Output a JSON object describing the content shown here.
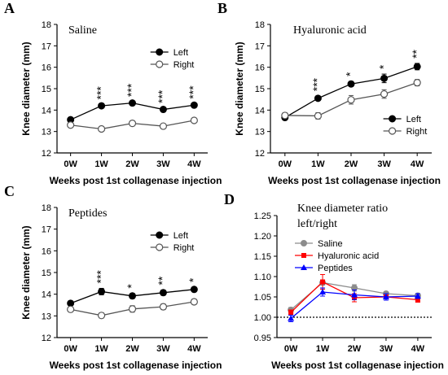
{
  "chart_data": [
    {
      "type": "line",
      "panel_label": "A",
      "title": "Saline",
      "xlabel": "Weeks post 1st collagenase injection",
      "ylabel": "Knee diameter (mm)",
      "categories": [
        "0W",
        "1W",
        "2W",
        "3W",
        "4W"
      ],
      "ylim": [
        12,
        18
      ],
      "yticks": [
        "12",
        "13",
        "14",
        "15",
        "16",
        "17",
        "18"
      ],
      "legend_position": "top-right",
      "series": [
        {
          "name": "Left",
          "marker": "filled-circle",
          "color": "#000000",
          "values": [
            13.55,
            14.2,
            14.33,
            14.03,
            14.23
          ],
          "errors": [
            0.06,
            0.06,
            0.06,
            0.06,
            0.06
          ]
        },
        {
          "name": "Right",
          "marker": "open-circle",
          "color": "#555555",
          "values": [
            13.3,
            13.12,
            13.38,
            13.25,
            13.52
          ],
          "errors": [
            0.06,
            0.06,
            0.12,
            0.1,
            0.06
          ]
        }
      ],
      "annotations": [
        "",
        "***",
        "***",
        "***",
        "***"
      ]
    },
    {
      "type": "line",
      "panel_label": "B",
      "title": "Hyaluronic acid",
      "xlabel": "Weeks post 1st collagenase injection",
      "ylabel": "Knee diameter (mm)",
      "categories": [
        "0W",
        "1W",
        "2W",
        "3W",
        "4W"
      ],
      "ylim": [
        12,
        18
      ],
      "yticks": [
        "12",
        "13",
        "14",
        "15",
        "16",
        "17",
        "18"
      ],
      "legend_position": "bottom-right",
      "series": [
        {
          "name": "Left",
          "marker": "filled-circle",
          "color": "#000000",
          "values": [
            13.65,
            14.55,
            15.22,
            15.48,
            16.03
          ],
          "errors": [
            0.07,
            0.1,
            0.12,
            0.2,
            0.15
          ]
        },
        {
          "name": "Right",
          "marker": "open-circle",
          "color": "#555555",
          "values": [
            13.75,
            13.73,
            14.48,
            14.75,
            15.28
          ],
          "errors": [
            0.12,
            0.15,
            0.2,
            0.2,
            0.15
          ]
        }
      ],
      "annotations": [
        "",
        "***",
        "*",
        "*",
        "**"
      ]
    },
    {
      "type": "line",
      "panel_label": "C",
      "title": "Peptides",
      "xlabel": "Weeks post 1st collagenase injection",
      "ylabel": "Knee diameter (mm)",
      "categories": [
        "0W",
        "1W",
        "2W",
        "3W",
        "4W"
      ],
      "ylim": [
        12,
        18
      ],
      "yticks": [
        "12",
        "13",
        "14",
        "15",
        "16",
        "17",
        "18"
      ],
      "legend_position": "top-right",
      "series": [
        {
          "name": "Left",
          "marker": "filled-circle",
          "color": "#000000",
          "values": [
            13.58,
            14.12,
            13.92,
            14.07,
            14.22
          ],
          "errors": [
            0.07,
            0.15,
            0.12,
            0.12,
            0.1
          ]
        },
        {
          "name": "Right",
          "marker": "open-circle",
          "color": "#555555",
          "values": [
            13.3,
            13.02,
            13.32,
            13.42,
            13.65
          ],
          "errors": [
            0.08,
            0.12,
            0.15,
            0.13,
            0.12
          ]
        }
      ],
      "annotations": [
        "",
        "***",
        "*",
        "**",
        "*"
      ]
    },
    {
      "type": "line",
      "panel_label": "D",
      "title": "Knee diameter ratio left/right",
      "title_lines": [
        "Knee diameter ratio",
        "left/right"
      ],
      "xlabel": "Weeks post 1st collagenase injection",
      "ylabel": "",
      "categories": [
        "0W",
        "1W",
        "2W",
        "3W",
        "4W"
      ],
      "ylim": [
        0.95,
        1.25
      ],
      "yticks": [
        "0.95",
        "1.00",
        "1.05",
        "1.10",
        "1.15",
        "1.20",
        "1.25"
      ],
      "reference_line": 1.0,
      "legend_position": "top-left",
      "series": [
        {
          "name": "Saline",
          "marker": "circle",
          "color": "#8c8c8c",
          "values": [
            1.018,
            1.085,
            1.072,
            1.058,
            1.053
          ],
          "errors": [
            0.006,
            0.006,
            0.008,
            0.005,
            0.005
          ]
        },
        {
          "name": "Hyaluronic acid",
          "marker": "square",
          "color": "#ff0000",
          "values": [
            1.012,
            1.087,
            1.048,
            1.05,
            1.043
          ],
          "errors": [
            0.006,
            0.018,
            0.01,
            0.008,
            0.006
          ]
        },
        {
          "name": "Peptides",
          "marker": "triangle",
          "color": "#0000ff",
          "values": [
            0.997,
            1.062,
            1.055,
            1.05,
            1.052
          ],
          "errors": [
            0.008,
            0.01,
            0.012,
            0.008,
            0.006
          ]
        }
      ],
      "annotations": [
        "",
        "",
        "",
        "",
        ""
      ]
    }
  ]
}
